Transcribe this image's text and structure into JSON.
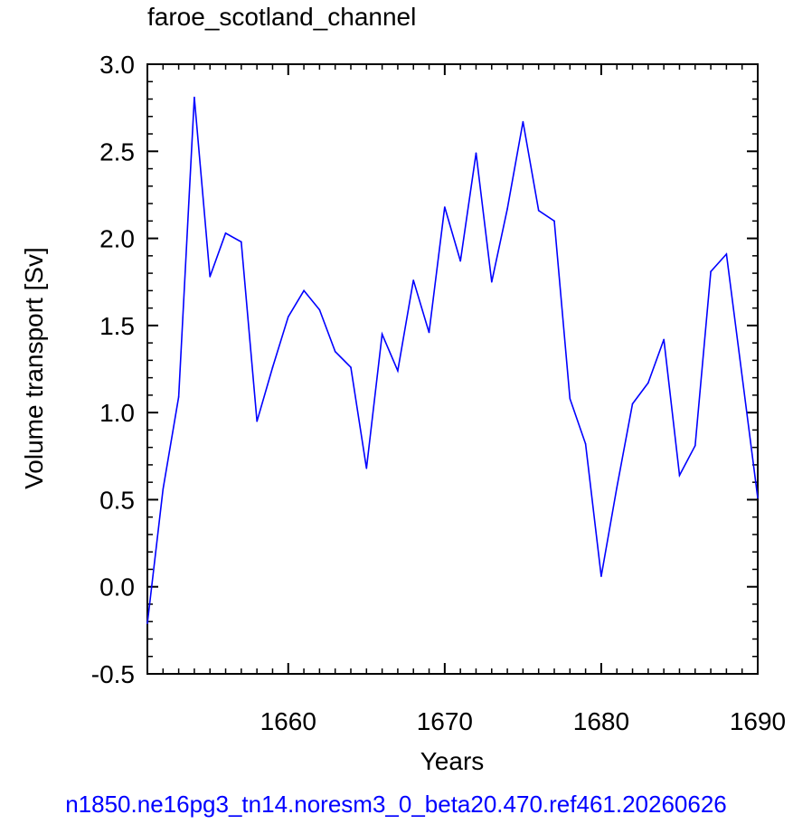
{
  "chart_data": {
    "type": "line",
    "title": "faroe_scotland_channel",
    "xlabel": "Years",
    "ylabel": "Volume transport [Sv]",
    "xlim": [
      1651,
      1690
    ],
    "ylim": [
      -0.5,
      3.0
    ],
    "x_ticks": [
      1660,
      1670,
      1680,
      1690
    ],
    "y_ticks": [
      -0.5,
      0.0,
      0.5,
      1.0,
      1.5,
      2.0,
      2.5,
      3.0
    ],
    "x_tick_labels": [
      "1660",
      "1670",
      "1680",
      "1690"
    ],
    "y_tick_labels": [
      "-0.5",
      "0.0",
      "0.5",
      "1.0",
      "1.5",
      "2.0",
      "2.5",
      "3.0"
    ],
    "series": [
      {
        "color": "#0000ff",
        "x": [
          1651,
          1652,
          1653,
          1654,
          1655,
          1656,
          1657,
          1658,
          1659,
          1660,
          1661,
          1662,
          1663,
          1664,
          1665,
          1666,
          1667,
          1668,
          1669,
          1670,
          1671,
          1672,
          1673,
          1674,
          1675,
          1676,
          1677,
          1678,
          1679,
          1680,
          1681,
          1682,
          1683,
          1684,
          1685,
          1686,
          1687,
          1688,
          1689,
          1690
        ],
        "y": [
          -0.21,
          0.56,
          1.09,
          2.81,
          1.78,
          2.03,
          1.98,
          0.95,
          1.26,
          1.55,
          1.7,
          1.59,
          1.35,
          1.26,
          0.68,
          1.45,
          1.24,
          1.76,
          1.46,
          2.18,
          1.87,
          2.49,
          1.75,
          2.17,
          2.67,
          2.16,
          2.1,
          1.08,
          0.82,
          0.06,
          0.57,
          1.05,
          1.17,
          1.42,
          0.64,
          0.81,
          1.81,
          1.91,
          1.21,
          0.51
        ]
      }
    ],
    "grid": false,
    "legend": "none"
  },
  "footer_text": "n1850.ne16pg3_tn14.noresm3_0_beta20.470.ref461.20260626"
}
